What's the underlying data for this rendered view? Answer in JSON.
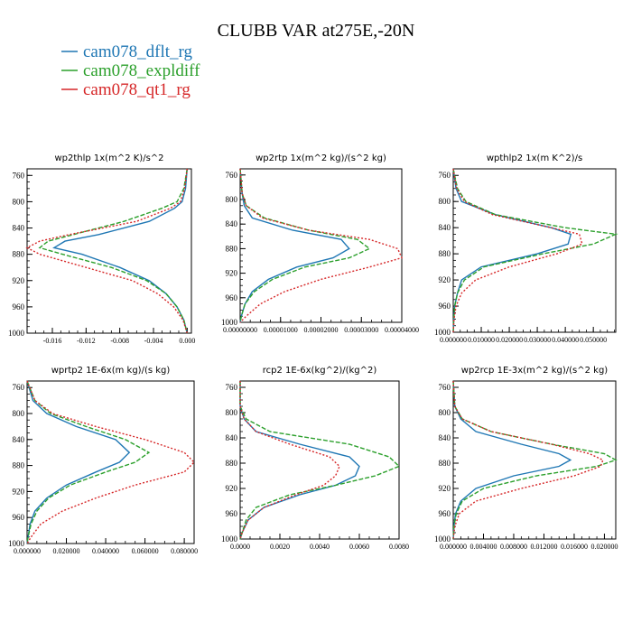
{
  "title": "CLUBB VAR at275E,-20N",
  "legend": [
    {
      "label": "cam078_dflt_rg",
      "color": "#1f77b4"
    },
    {
      "label": "cam078_expldiff",
      "color": "#2ca02c"
    },
    {
      "label": "cam078_qt1_rg",
      "color": "#d62728"
    }
  ],
  "chart_data": [
    {
      "type": "line",
      "title": "wp2thlp  1x(m^2 K)/s^2",
      "xlim": [
        -0.019,
        0.0005
      ],
      "xticks": [
        -0.016,
        -0.012,
        -0.008,
        -0.004,
        0.0
      ],
      "xtick_labels": [
        "-0.016",
        "-0.012",
        "-0.008",
        "-0.004",
        "0.000"
      ],
      "ylim": [
        1000,
        750
      ],
      "yticks": [
        760,
        800,
        840,
        880,
        920,
        960,
        1000
      ],
      "y": [
        750,
        780,
        800,
        810,
        830,
        850,
        860,
        870,
        880,
        900,
        920,
        940,
        960,
        980,
        1000
      ],
      "series": [
        {
          "name": "cam078_dflt_rg",
          "values": [
            0.0,
            -0.0002,
            -0.0006,
            -0.0015,
            -0.0045,
            -0.0105,
            -0.0145,
            -0.0158,
            -0.0125,
            -0.008,
            -0.0045,
            -0.0025,
            -0.0012,
            -0.0004,
            0.0
          ]
        },
        {
          "name": "cam078_expldiff",
          "values": [
            0.0,
            -0.0004,
            -0.0012,
            -0.003,
            -0.0075,
            -0.0135,
            -0.0165,
            -0.0175,
            -0.0148,
            -0.009,
            -0.0048,
            -0.0025,
            -0.0012,
            -0.0004,
            0.0
          ]
        },
        {
          "name": "cam078_qt1_rg",
          "values": [
            0.0,
            -0.0003,
            -0.0008,
            -0.002,
            -0.006,
            -0.014,
            -0.0175,
            -0.019,
            -0.0175,
            -0.012,
            -0.0065,
            -0.0035,
            -0.0016,
            -0.0005,
            0.0
          ]
        }
      ]
    },
    {
      "type": "line",
      "title": "wp2rtp  1x(m^2 kg)/(s^2 kg)",
      "xlim": [
        0,
        4e-05
      ],
      "xticks": [
        0,
        1e-05,
        2e-05,
        3e-05,
        4e-05
      ],
      "xtick_labels": [
        "0.00000000",
        "0.00001000",
        "0.00002000",
        "0.00003000",
        "0.00004000"
      ],
      "ylim": [
        1000,
        750
      ],
      "yticks": [
        760,
        800,
        840,
        880,
        920,
        960,
        1000
      ],
      "y": [
        750,
        790,
        810,
        830,
        850,
        865,
        880,
        895,
        910,
        930,
        950,
        970,
        990,
        1000
      ],
      "series": [
        {
          "name": "cam078_dflt_rg",
          "values": [
            0.0,
            5e-07,
            1e-06,
            3e-06,
            1.3e-05,
            2.5e-05,
            2.7e-05,
            2.3e-05,
            1.4e-05,
            7e-06,
            3e-06,
            1.2e-06,
            3e-07,
            0.0
          ]
        },
        {
          "name": "cam078_expldiff",
          "values": [
            0.0,
            5e-07,
            1.5e-06,
            6e-06,
            1.7e-05,
            2.9e-05,
            3.2e-05,
            2.7e-05,
            1.6e-05,
            8e-06,
            3.5e-06,
            1.2e-06,
            3e-07,
            0.0
          ]
        },
        {
          "name": "cam078_qt1_rg",
          "values": [
            0.0,
            5e-07,
            1.5e-06,
            5.5e-06,
            1.7e-05,
            3.2e-05,
            3.9e-05,
            4e-05,
            3.2e-05,
            2e-05,
            1.1e-05,
            5e-06,
            1.5e-06,
            0.0
          ]
        }
      ]
    },
    {
      "type": "line",
      "title": "wpthlp2  1x(m K^2)/s",
      "xlim": [
        0,
        0.058
      ],
      "xticks": [
        0,
        0.01,
        0.02,
        0.03,
        0.04,
        0.05
      ],
      "xtick_labels": [
        "0.000000",
        "0.010000",
        "0.020000",
        "0.030000",
        "0.040000",
        "0.050000"
      ],
      "ylim": [
        1000,
        750
      ],
      "yticks": [
        760,
        800,
        840,
        880,
        920,
        960,
        1000
      ],
      "y": [
        750,
        780,
        800,
        820,
        840,
        850,
        865,
        880,
        900,
        920,
        940,
        960,
        980,
        1000
      ],
      "series": [
        {
          "name": "cam078_dflt_rg",
          "values": [
            0.0,
            0.001,
            0.003,
            0.015,
            0.035,
            0.042,
            0.041,
            0.03,
            0.01,
            0.003,
            0.0015,
            0.0005,
            0.0002,
            0.0
          ]
        },
        {
          "name": "cam078_expldiff",
          "values": [
            0.0,
            0.0015,
            0.0045,
            0.015,
            0.04,
            0.058,
            0.05,
            0.032,
            0.011,
            0.004,
            0.0015,
            0.0005,
            0.0002,
            0.0
          ]
        },
        {
          "name": "cam078_qt1_rg",
          "values": [
            0.0,
            0.0012,
            0.004,
            0.014,
            0.035,
            0.045,
            0.046,
            0.037,
            0.02,
            0.008,
            0.003,
            0.001,
            0.0003,
            0.0
          ]
        }
      ]
    },
    {
      "type": "line",
      "title": "wprtp2  1E-6x(m kg)/(s kg)",
      "xlim": [
        0,
        0.085
      ],
      "xticks": [
        0,
        0.02,
        0.04,
        0.06,
        0.08
      ],
      "xtick_labels": [
        "0.000000",
        "0.020000",
        "0.040000",
        "0.060000",
        "0.080000"
      ],
      "ylim": [
        1000,
        750
      ],
      "yticks": [
        760,
        800,
        840,
        880,
        920,
        960,
        1000
      ],
      "y": [
        750,
        780,
        800,
        820,
        840,
        860,
        875,
        890,
        910,
        930,
        950,
        970,
        990,
        1000
      ],
      "series": [
        {
          "name": "cam078_dflt_rg",
          "values": [
            0.0,
            0.003,
            0.01,
            0.025,
            0.045,
            0.052,
            0.047,
            0.035,
            0.02,
            0.01,
            0.004,
            0.0015,
            0.0005,
            0.0
          ]
        },
        {
          "name": "cam078_expldiff",
          "values": [
            0.0,
            0.004,
            0.012,
            0.03,
            0.05,
            0.062,
            0.055,
            0.04,
            0.022,
            0.011,
            0.005,
            0.002,
            0.0005,
            0.0
          ]
        },
        {
          "name": "cam078_qt1_rg",
          "values": [
            0.0,
            0.004,
            0.013,
            0.035,
            0.06,
            0.08,
            0.085,
            0.08,
            0.055,
            0.035,
            0.018,
            0.007,
            0.002,
            0.0
          ]
        }
      ]
    },
    {
      "type": "line",
      "title": "rcp2  1E-6x(kg^2)/(kg^2)",
      "xlim": [
        0,
        0.008
      ],
      "xticks": [
        0,
        0.002,
        0.004,
        0.006,
        0.008
      ],
      "xtick_labels": [
        "0.0000",
        "0.0020",
        "0.0040",
        "0.0060",
        "0.0080"
      ],
      "ylim": [
        1000,
        750
      ],
      "yticks": [
        760,
        800,
        840,
        880,
        920,
        960,
        1000
      ],
      "y": [
        750,
        790,
        810,
        830,
        850,
        870,
        885,
        900,
        915,
        930,
        950,
        970,
        990,
        1000
      ],
      "series": [
        {
          "name": "cam078_dflt_rg",
          "values": [
            0.0,
            0.0,
            0.0002,
            0.0008,
            0.003,
            0.0055,
            0.006,
            0.0058,
            0.0048,
            0.003,
            0.0012,
            0.0004,
            0.0001,
            0.0
          ]
        },
        {
          "name": "cam078_expldiff",
          "values": [
            0.0,
            0.0,
            0.0003,
            0.0015,
            0.0055,
            0.0075,
            0.008,
            0.0068,
            0.0048,
            0.0025,
            0.0008,
            0.0003,
            0.0001,
            0.0
          ]
        },
        {
          "name": "cam078_qt1_rg",
          "values": [
            0.0,
            0.0,
            0.0002,
            0.0008,
            0.0025,
            0.0045,
            0.005,
            0.0048,
            0.0042,
            0.0028,
            0.0012,
            0.0004,
            0.0001,
            0.0
          ]
        }
      ]
    },
    {
      "type": "line",
      "title": "wp2rcp  1E-3x(m^2 kg)/(s^2 kg)",
      "xlim": [
        0,
        0.0215
      ],
      "xticks": [
        0,
        0.004,
        0.008,
        0.012,
        0.016,
        0.02
      ],
      "xtick_labels": [
        "0.000000",
        "0.004000",
        "0.008000",
        "0.012000",
        "0.016000",
        "0.020000"
      ],
      "ylim": [
        1000,
        750
      ],
      "yticks": [
        760,
        800,
        840,
        880,
        920,
        960,
        1000
      ],
      "y": [
        750,
        790,
        810,
        830,
        850,
        865,
        875,
        885,
        900,
        920,
        940,
        960,
        980,
        1000
      ],
      "series": [
        {
          "name": "cam078_dflt_rg",
          "values": [
            0.0,
            0.0002,
            0.001,
            0.003,
            0.009,
            0.014,
            0.0155,
            0.014,
            0.008,
            0.003,
            0.001,
            0.0003,
            0.0001,
            0.0
          ]
        },
        {
          "name": "cam078_expldiff",
          "values": [
            0.0,
            0.0002,
            0.0012,
            0.005,
            0.013,
            0.02,
            0.0215,
            0.019,
            0.011,
            0.004,
            0.0012,
            0.0004,
            0.0001,
            0.0
          ]
        },
        {
          "name": "cam078_qt1_rg",
          "values": [
            0.0,
            0.0002,
            0.0012,
            0.005,
            0.013,
            0.018,
            0.0198,
            0.0195,
            0.016,
            0.009,
            0.003,
            0.0008,
            0.0002,
            0.0
          ]
        }
      ]
    }
  ]
}
